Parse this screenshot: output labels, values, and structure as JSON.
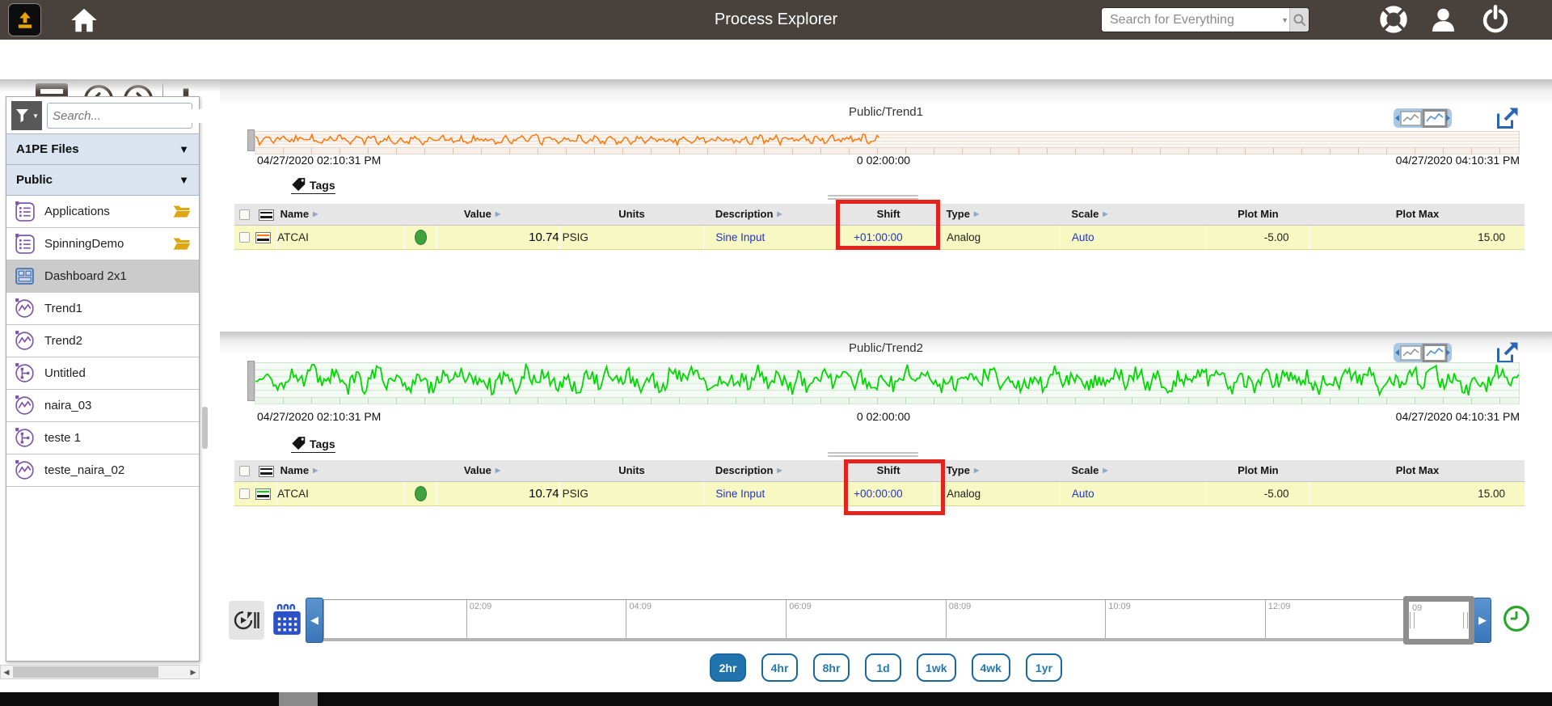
{
  "topbar": {
    "title": "Process Explorer",
    "search_placeholder": "Search for Everything"
  },
  "toolbar": {
    "title": "Dashboard 2x1"
  },
  "sidebar": {
    "search_placeholder": "Search...",
    "section1": "A1PE Files",
    "section2": "Public",
    "items": [
      {
        "label": "Applications"
      },
      {
        "label": "SpinningDemo"
      },
      {
        "label": "Dashboard 2x1"
      },
      {
        "label": "Trend1"
      },
      {
        "label": "Trend2"
      },
      {
        "label": "Untitled"
      },
      {
        "label": "naira_03"
      },
      {
        "label": "teste 1"
      },
      {
        "label": "teste_naira_02"
      }
    ]
  },
  "table_headers": {
    "name": "Name",
    "value": "Value",
    "units": "Units",
    "description": "Description",
    "shift": "Shift",
    "type": "Type",
    "scale": "Scale",
    "plot_min": "Plot Min",
    "plot_max": "Plot Max"
  },
  "panels": [
    {
      "title": "Public/Trend1",
      "start": "04/27/2020 02:10:31 PM",
      "duration": "0 02:00:00",
      "end": "04/27/2020 04:10:31 PM",
      "tags": "Tags",
      "line_color": "#ff7300",
      "row": {
        "name": "ATCAI",
        "value": "10.74",
        "units": "PSIG",
        "description": "Sine Input",
        "shift": "+01:00:00",
        "type": "Analog",
        "scale": "Auto",
        "plot_min": "-5.00",
        "plot_max": "15.00"
      }
    },
    {
      "title": "Public/Trend2",
      "start": "04/27/2020 02:10:31 PM",
      "duration": "0 02:00:00",
      "end": "04/27/2020 04:10:31 PM",
      "tags": "Tags",
      "line_color": "#00d800",
      "row": {
        "name": "ATCAI",
        "value": "10.74",
        "units": "PSIG",
        "description": "Sine Input",
        "shift": "+00:00:00",
        "type": "Analog",
        "scale": "Auto",
        "plot_min": "-5.00",
        "plot_max": "15.00"
      }
    }
  ],
  "timeline": {
    "ticks": [
      "02:09",
      "04:09",
      "06:09",
      "08:09",
      "10:09",
      "12:09"
    ],
    "window_label": "09",
    "ranges": [
      "2hr",
      "4hr",
      "8hr",
      "1d",
      "1wk",
      "4wk",
      "1yr"
    ],
    "selected_range": "2hr"
  },
  "colors": {
    "topbar_bg": "#49423c",
    "link_blue": "#2233cc",
    "row_yellow": "#f8f8c2",
    "highlight_red": "#e3231d",
    "accent_blue": "#2173ae",
    "trend1_line": "#ff7300",
    "trend2_line": "#00d800"
  }
}
